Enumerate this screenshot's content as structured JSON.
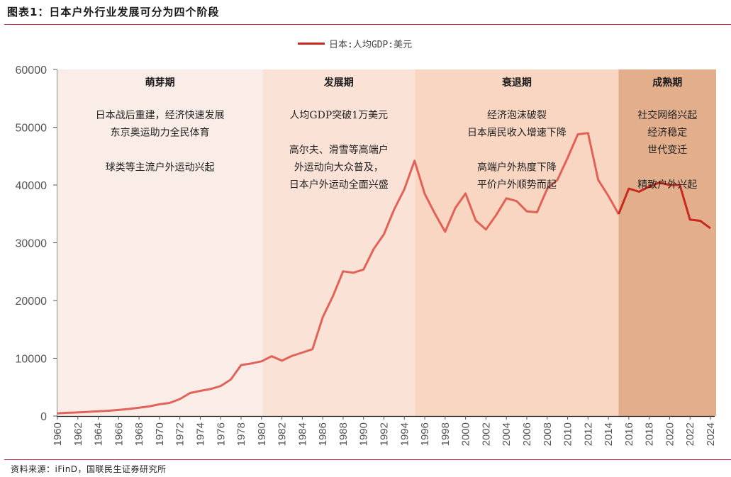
{
  "header": {
    "title": "图表1：日本户外行业发展可分为四个阶段"
  },
  "legend": {
    "label": "日本:人均GDP:美元",
    "color": "#c8281e"
  },
  "footer": {
    "source": "资料来源：iFinD，国联民生证券研究所"
  },
  "bands": [
    {
      "name": "萌芽期",
      "start": 1960,
      "end": 1980.1,
      "color": "#faede8",
      "lines": [
        "日本战后重建，经济快速发展",
        "东京奥运助力全民体育",
        "",
        "球类等主流户外运动兴起"
      ]
    },
    {
      "name": "发展期",
      "start": 1980.1,
      "end": 1995.05,
      "color": "#fbe2d7",
      "lines": [
        "人均GDP突破1万美元",
        "",
        "高尔夫、滑雪等高端户",
        "外运动向大众普及，",
        "日本户外运动全面兴盛"
      ]
    },
    {
      "name": "衰退期",
      "start": 1995.05,
      "end": 2015.0,
      "color": "#f8d6c2",
      "lines": [
        "经济泡沫破裂",
        "日本居民收入增速下降",
        "",
        "高端户外热度下降",
        "平价户外顺势而起"
      ]
    },
    {
      "name": "成熟期",
      "start": 2015.0,
      "end": 2024.6,
      "color": "#e3ae8c",
      "lines": [
        "社交网络兴起",
        "经济稳定",
        "世代变迁",
        "",
        "精致户外兴起"
      ]
    }
  ],
  "chart_data": {
    "type": "line",
    "title": "日本户外行业发展可分为四个阶段",
    "xlabel": "",
    "ylabel": "",
    "ylim": [
      0,
      60000
    ],
    "yticks": [
      0,
      10000,
      20000,
      30000,
      40000,
      50000,
      60000
    ],
    "xticks": [
      1960,
      1962,
      1964,
      1966,
      1968,
      1970,
      1972,
      1974,
      1976,
      1978,
      1980,
      1982,
      1984,
      1986,
      1988,
      1990,
      1992,
      1994,
      1996,
      1998,
      2000,
      2002,
      2004,
      2006,
      2008,
      2010,
      2012,
      2014,
      2016,
      2018,
      2020,
      2022,
      2024
    ],
    "grid": false,
    "legend_position": "top",
    "series": [
      {
        "name": "日本:人均GDP:美元",
        "color": "#c8281e",
        "x": [
          1960,
          1961,
          1962,
          1963,
          1964,
          1965,
          1966,
          1967,
          1968,
          1969,
          1970,
          1971,
          1972,
          1973,
          1974,
          1975,
          1976,
          1977,
          1978,
          1979,
          1980,
          1981,
          1982,
          1983,
          1984,
          1985,
          1986,
          1987,
          1988,
          1989,
          1990,
          1991,
          1992,
          1993,
          1994,
          1995,
          1996,
          1997,
          1998,
          1999,
          2000,
          2001,
          2002,
          2003,
          2004,
          2005,
          2006,
          2007,
          2008,
          2009,
          2010,
          2011,
          2012,
          2013,
          2014,
          2015,
          2016,
          2017,
          2018,
          2019,
          2020,
          2021,
          2022,
          2023,
          2024
        ],
        "values": [
          480,
          560,
          630,
          720,
          840,
          920,
          1060,
          1230,
          1450,
          1670,
          2040,
          2270,
          2950,
          3990,
          4350,
          4670,
          5200,
          6330,
          8820,
          9100,
          9470,
          10360,
          9580,
          10430,
          10980,
          11580,
          17110,
          20750,
          25050,
          24810,
          25360,
          28930,
          31470,
          35770,
          39270,
          44200,
          38440,
          35020,
          31900,
          36030,
          38530,
          33850,
          32290,
          34810,
          37690,
          37220,
          35430,
          35280,
          39340,
          40860,
          44670,
          48760,
          49000,
          40900,
          38100,
          34960,
          39380,
          38830,
          39730,
          40420,
          40000,
          40000,
          34000,
          33800,
          32500
        ]
      }
    ],
    "annotations": [
      "萌芽期",
      "发展期",
      "衰退期",
      "成熟期"
    ]
  }
}
